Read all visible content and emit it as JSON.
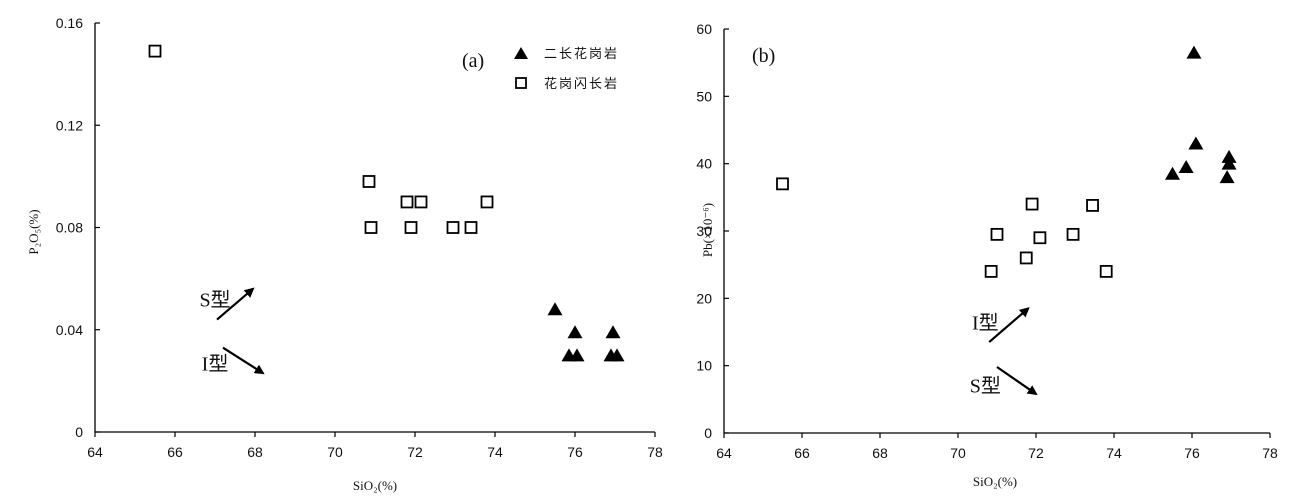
{
  "chart_data": [
    {
      "type": "scatter",
      "panel_label": "(a)",
      "xlabel": "SiO₂(%)",
      "ylabel": "P₂O₅(%)",
      "xlim": [
        64,
        78
      ],
      "ylim": [
        0,
        0.16
      ],
      "x_ticks": [
        "64",
        "66",
        "68",
        "70",
        "72",
        "74",
        "76",
        "78"
      ],
      "y_ticks": [
        "0",
        "0.04",
        "0.08",
        "0.12",
        "0.16"
      ],
      "legend_position": "top-right",
      "legend": [
        "二长花岗岩",
        "花岗闪长岩"
      ],
      "series": [
        {
          "name": "二长花岗岩",
          "marker": "filled-triangle",
          "points": [
            [
              75.5,
              0.048
            ],
            [
              76.0,
              0.039
            ],
            [
              75.85,
              0.03
            ],
            [
              76.05,
              0.03
            ],
            [
              76.95,
              0.039
            ],
            [
              76.9,
              0.03
            ],
            [
              77.05,
              0.03
            ]
          ]
        },
        {
          "name": "花岗闪长岩",
          "marker": "open-square",
          "points": [
            [
              65.5,
              0.149
            ],
            [
              70.85,
              0.098
            ],
            [
              70.9,
              0.08
            ],
            [
              71.8,
              0.09
            ],
            [
              72.15,
              0.09
            ],
            [
              71.9,
              0.08
            ],
            [
              72.95,
              0.08
            ],
            [
              73.4,
              0.08
            ],
            [
              73.8,
              0.09
            ]
          ]
        }
      ],
      "annotations": [
        {
          "text": "S型",
          "direction": "up",
          "at": [
            67.0,
            0.049
          ],
          "arrow_from": [
            67.05,
            0.044
          ],
          "arrow_to": [
            67.95,
            0.056
          ]
        },
        {
          "text": "I型",
          "direction": "down",
          "at": [
            67.0,
            0.024
          ],
          "arrow_from": [
            67.2,
            0.033
          ],
          "arrow_to": [
            68.2,
            0.023
          ]
        }
      ]
    },
    {
      "type": "scatter",
      "panel_label": "(b)",
      "xlabel": "SiO₂(%)",
      "ylabel": "Pb(×10⁻⁶)",
      "xlim": [
        64,
        78
      ],
      "ylim": [
        0,
        60
      ],
      "x_ticks": [
        "64",
        "66",
        "68",
        "70",
        "72",
        "74",
        "76",
        "78"
      ],
      "y_ticks": [
        "0",
        "10",
        "20",
        "30",
        "40",
        "50",
        "60"
      ],
      "series": [
        {
          "name": "二长花岗岩",
          "marker": "filled-triangle",
          "points": [
            [
              76.05,
              56.5
            ],
            [
              76.1,
              43.0
            ],
            [
              75.85,
              39.5
            ],
            [
              75.5,
              38.5
            ],
            [
              76.95,
              41.0
            ],
            [
              76.95,
              40.0
            ],
            [
              76.9,
              38.0
            ]
          ]
        },
        {
          "name": "花岗闪长岩",
          "marker": "open-square",
          "points": [
            [
              65.5,
              37.0
            ],
            [
              71.0,
              29.5
            ],
            [
              70.85,
              24.0
            ],
            [
              71.9,
              34.0
            ],
            [
              72.1,
              29.0
            ],
            [
              71.75,
              26.0
            ],
            [
              72.95,
              29.5
            ],
            [
              73.45,
              33.8
            ],
            [
              73.8,
              24.0
            ]
          ]
        }
      ],
      "annotations": [
        {
          "text": "I型",
          "direction": "up",
          "at": [
            70.7,
            15.4
          ],
          "arrow_from": [
            70.8,
            13.5
          ],
          "arrow_to": [
            71.8,
            18.5
          ]
        },
        {
          "text": "S型",
          "direction": "down",
          "at": [
            70.7,
            6.0
          ],
          "arrow_from": [
            71.0,
            9.8
          ],
          "arrow_to": [
            72.0,
            5.8
          ]
        }
      ]
    }
  ]
}
